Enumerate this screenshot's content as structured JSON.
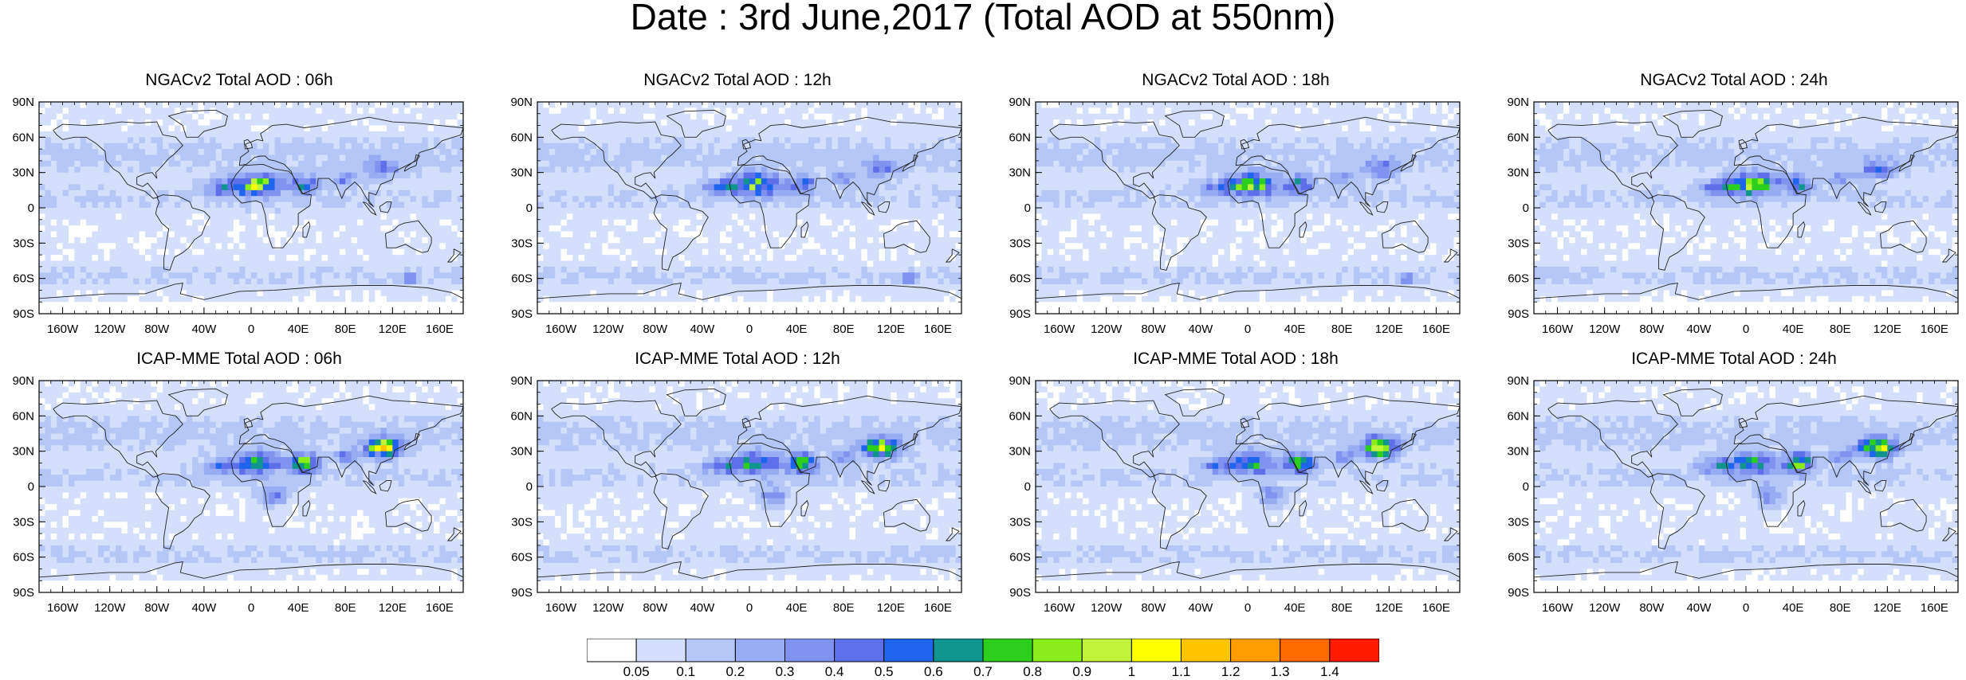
{
  "title": "Date : 3rd June,2017 (Total AOD at 550nm)",
  "panels": [
    {
      "title": "NGACv2 Total AOD : 06h",
      "model": "NGACv2",
      "hour": "06h"
    },
    {
      "title": "NGACv2 Total AOD : 12h",
      "model": "NGACv2",
      "hour": "12h"
    },
    {
      "title": "NGACv2 Total AOD : 18h",
      "model": "NGACv2",
      "hour": "18h"
    },
    {
      "title": "NGACv2 Total AOD : 24h",
      "model": "NGACv2",
      "hour": "24h"
    },
    {
      "title": "ICAP-MME Total AOD : 06h",
      "model": "ICAP-MME",
      "hour": "06h"
    },
    {
      "title": "ICAP-MME Total AOD : 12h",
      "model": "ICAP-MME",
      "hour": "12h"
    },
    {
      "title": "ICAP-MME Total AOD : 18h",
      "model": "ICAP-MME",
      "hour": "18h"
    },
    {
      "title": "ICAP-MME Total AOD : 24h",
      "model": "ICAP-MME",
      "hour": "24h"
    }
  ],
  "lat_ticks": [
    "90N",
    "60N",
    "30N",
    "0",
    "30S",
    "60S",
    "90S"
  ],
  "lon_ticks": [
    "160W",
    "120W",
    "80W",
    "40W",
    "0",
    "40E",
    "80E",
    "120E",
    "160E"
  ],
  "colorbar": {
    "labels": [
      "0.05",
      "0.1",
      "0.2",
      "0.3",
      "0.4",
      "0.5",
      "0.6",
      "0.7",
      "0.8",
      "0.9",
      "1",
      "1.1",
      "1.2",
      "1.3",
      "1.4"
    ],
    "colors": [
      "#ffffff",
      "#d4e0fb",
      "#b4c7f7",
      "#97acf3",
      "#7f93ef",
      "#5d6fe9",
      "#1e64ec",
      "#10958e",
      "#2bcf1c",
      "#8bee1a",
      "#c2f33b",
      "#ffff00",
      "#ffc400",
      "#ff9c00",
      "#ff6a00",
      "#ff1a00"
    ]
  }
}
